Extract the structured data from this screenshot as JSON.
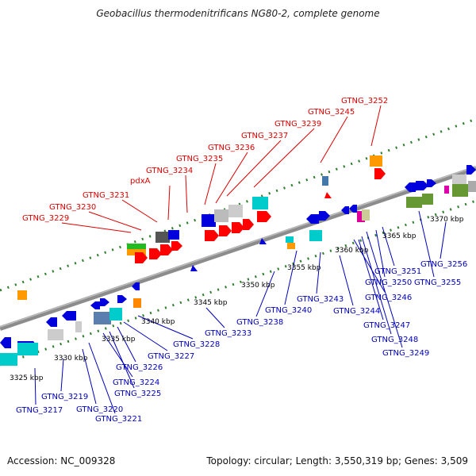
{
  "title": "Geobacillus thermodenitrificans NG80-2, complete genome",
  "footer": {
    "accession": "Accession: NC_009328",
    "topology": "Topology: circular; Length: 3,550,319 bp; Genes: 3,509"
  },
  "colors": {
    "backbone": "#8c8c8c",
    "tick": "#2f7f2f",
    "label_top": "#dd0000",
    "label_bottom": "#0000bb",
    "kbp_text": "#000000"
  },
  "kbp_labels": [
    "3325 kbp",
    "3330 kbp",
    "3335 kbp",
    "3340 kbp",
    "3345 kbp",
    "3350 kbp",
    "3355 kbp",
    "3360 kbp",
    "3365 kbp",
    "3370 kbp"
  ],
  "top_gene_labels": [
    "GTNG_3229",
    "GTNG_3230",
    "GTNG_3231",
    "pdxA",
    "GTNG_3234",
    "GTNG_3235",
    "GTNG_3236",
    "GTNG_3237",
    "GTNG_3239",
    "GTNG_3245",
    "GTNG_3252"
  ],
  "bottom_gene_labels": [
    "GTNG_3217",
    "GTNG_3219",
    "GTNG_3220",
    "GTNG_3221",
    "GTNG_3224",
    "GTNG_3225",
    "GTNG_3226",
    "GTNG_3227",
    "GTNG_3228",
    "GTNG_3233",
    "GTNG_3238",
    "GTNG_3240",
    "GTNG_3243",
    "GTNG_3244",
    "GTNG_3246",
    "GTNG_3247",
    "GTNG_3248",
    "GTNG_3249",
    "GTNG_3250",
    "GTNG_3251",
    "GTNG_3255",
    "GTNG_3256"
  ]
}
